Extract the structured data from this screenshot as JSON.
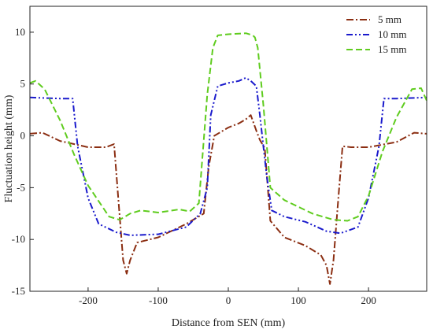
{
  "chart_data": {
    "type": "line",
    "title": "",
    "xlabel": "Distance from SEN (mm)",
    "ylabel": "Fluctuation height (mm)",
    "xlim": [
      -283,
      283
    ],
    "ylim": [
      -15,
      12.5
    ],
    "xticks": [
      -200,
      -100,
      0,
      100,
      200
    ],
    "yticks": [
      -15,
      -10,
      -5,
      0,
      5,
      10
    ],
    "grid": false,
    "legend_position": "top-right",
    "series": [
      {
        "name": "5 mm",
        "color": "#8B2E12",
        "dash": "dash-dot",
        "x": [
          -283,
          -265,
          -240,
          -200,
          -175,
          -163,
          -157,
          -150,
          -145,
          -140,
          -130,
          -100,
          -60,
          -35,
          -28,
          -20,
          0,
          15,
          25,
          32,
          40,
          45,
          52,
          60,
          80,
          110,
          132,
          140,
          145,
          150,
          157,
          163,
          175,
          200,
          240,
          265,
          283
        ],
        "y": [
          0.2,
          0.3,
          -0.5,
          -1.1,
          -1.1,
          -0.8,
          -6,
          -12,
          -13.3,
          -12,
          -10.3,
          -9.8,
          -8.5,
          -7.5,
          -3,
          0,
          0.8,
          1.2,
          1.6,
          2.0,
          0.5,
          -0.4,
          -1.2,
          -8.2,
          -9.8,
          -10.6,
          -11.5,
          -12.5,
          -14.3,
          -12,
          -6,
          -1,
          -1.1,
          -1.1,
          -0.6,
          0.3,
          0.2
        ]
      },
      {
        "name": "10 mm",
        "color": "#1A1ACC",
        "dash": "dash-dot-dot",
        "x": [
          -283,
          -240,
          -222,
          -215,
          -200,
          -185,
          -160,
          -140,
          -100,
          -60,
          -40,
          -30,
          -25,
          -15,
          0,
          15,
          25,
          32,
          40,
          45,
          50,
          55,
          62,
          80,
          110,
          140,
          160,
          185,
          200,
          215,
          222,
          240,
          283
        ],
        "y": [
          3.7,
          3.6,
          3.6,
          -1,
          -6,
          -8.5,
          -9.3,
          -9.6,
          -9.5,
          -8.8,
          -7.5,
          -5,
          2,
          4.8,
          5.1,
          5.3,
          5.6,
          5.3,
          4.8,
          2,
          -1,
          -4,
          -7.2,
          -7.8,
          -8.3,
          -9.2,
          -9.4,
          -8.8,
          -6,
          -1,
          3.6,
          3.6,
          3.7
        ]
      },
      {
        "name": "15 mm",
        "color": "#5FCC1E",
        "dash": "dash",
        "x": [
          -283,
          -275,
          -262,
          -240,
          -220,
          -200,
          -170,
          -155,
          -140,
          -125,
          -100,
          -70,
          -55,
          -42,
          -30,
          -22,
          -15,
          0,
          25,
          35,
          38,
          42,
          50,
          60,
          80,
          120,
          150,
          170,
          185,
          200,
          220,
          240,
          262,
          275,
          283
        ],
        "y": [
          5.1,
          5.3,
          4.5,
          1.5,
          -1.8,
          -4.8,
          -7.8,
          -8.1,
          -7.5,
          -7.2,
          -7.4,
          -7.1,
          -7.3,
          -6.5,
          4,
          8.5,
          9.7,
          9.8,
          9.9,
          9.7,
          9.5,
          8.5,
          3,
          -5.0,
          -6.2,
          -7.5,
          -8.1,
          -8.2,
          -7.8,
          -5.8,
          -1.5,
          1.8,
          4.5,
          4.6,
          3.4
        ]
      }
    ]
  }
}
